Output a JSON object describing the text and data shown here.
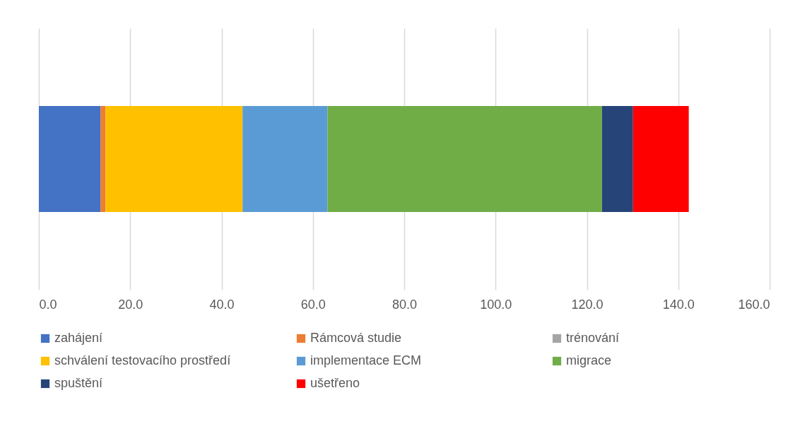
{
  "chart_data": {
    "type": "bar",
    "orientation": "horizontal",
    "stacked": true,
    "categories": [
      null
    ],
    "series": [
      {
        "name": "zahájení",
        "color": "#4472c4",
        "values": [
          13.5
        ]
      },
      {
        "name": "Rámcová studie",
        "color": "#ed7d31",
        "values": [
          1.1
        ]
      },
      {
        "name": "trénování",
        "color": "#a5a5a5",
        "values": [
          0
        ]
      },
      {
        "name": "schválení testovacího prostředí",
        "color": "#ffc000",
        "values": [
          30.0
        ]
      },
      {
        "name": "implementace ECM",
        "color": "#5b9bd5",
        "values": [
          18.6
        ]
      },
      {
        "name": "migrace",
        "color": "#70ad47",
        "values": [
          60.1
        ]
      },
      {
        "name": "spuštění",
        "color": "#264478",
        "values": [
          6.8
        ]
      },
      {
        "name": "ušetřeno",
        "color": "#ff0000",
        "values": [
          12.2
        ]
      }
    ],
    "xlim": [
      0,
      160
    ],
    "xticks": [
      {
        "value": 0,
        "label": "0.0"
      },
      {
        "value": 20,
        "label": "20.0"
      },
      {
        "value": 40,
        "label": "40.0"
      },
      {
        "value": 60,
        "label": "60.0"
      },
      {
        "value": 80,
        "label": "80.0"
      },
      {
        "value": 100,
        "label": "100.0"
      },
      {
        "value": 120,
        "label": "120.0"
      },
      {
        "value": 140,
        "label": "140.0"
      },
      {
        "value": 160,
        "label": "160.0"
      }
    ],
    "grid": "x",
    "legend": "bottom"
  }
}
